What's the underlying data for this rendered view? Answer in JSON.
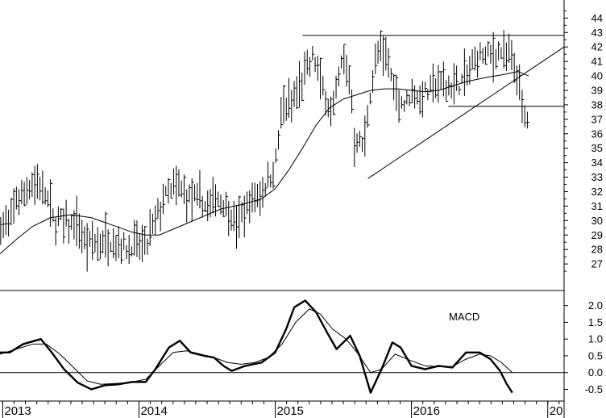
{
  "chart_data": [
    {
      "type": "ohlc",
      "title": "",
      "xlabel": "",
      "ylabel": "",
      "ylim": [
        25.5,
        44.8
      ],
      "yticks": [
        27,
        28,
        29,
        30,
        31,
        32,
        33,
        34,
        35,
        36,
        37,
        38,
        39,
        40,
        41,
        42,
        43,
        44
      ],
      "grid": false,
      "x_labels": [
        "2013",
        "2014",
        "2015",
        "2016",
        "20"
      ],
      "x_label_times": [
        2013.0,
        2014.0,
        2015.0,
        2016.0,
        2017.0
      ],
      "xlim": [
        2012.98,
        2017.12
      ],
      "price_knots": [
        [
          2012.98,
          29.7
        ],
        [
          2013.03,
          29.6
        ],
        [
          2013.1,
          31.5
        ],
        [
          2013.2,
          32.5
        ],
        [
          2013.3,
          32.4
        ],
        [
          2013.38,
          29.9
        ],
        [
          2013.45,
          30.0
        ],
        [
          2013.55,
          29.5
        ],
        [
          2013.62,
          28.1
        ],
        [
          2013.7,
          28.6
        ],
        [
          2013.8,
          28.6
        ],
        [
          2013.9,
          28.2
        ],
        [
          2014.0,
          28.3
        ],
        [
          2014.06,
          28.4
        ],
        [
          2014.12,
          30.0
        ],
        [
          2014.2,
          31.8
        ],
        [
          2014.28,
          32.3
        ],
        [
          2014.36,
          31.5
        ],
        [
          2014.45,
          31.4
        ],
        [
          2014.5,
          30.8
        ],
        [
          2014.56,
          31.7
        ],
        [
          2014.65,
          31.0
        ],
        [
          2014.72,
          29.6
        ],
        [
          2014.8,
          31.2
        ],
        [
          2014.9,
          32.0
        ],
        [
          2015.0,
          33.8
        ],
        [
          2015.05,
          37.7
        ],
        [
          2015.12,
          38.2
        ],
        [
          2015.2,
          39.5
        ],
        [
          2015.28,
          41.5
        ],
        [
          2015.35,
          39.0
        ],
        [
          2015.42,
          37.6
        ],
        [
          2015.5,
          41.5
        ],
        [
          2015.55,
          39.6
        ],
        [
          2015.58,
          35.7
        ],
        [
          2015.65,
          35.0
        ],
        [
          2015.7,
          39.0
        ],
        [
          2015.76,
          41.8
        ],
        [
          2015.82,
          41.4
        ],
        [
          2015.88,
          38.8
        ],
        [
          2015.95,
          38.0
        ],
        [
          2016.0,
          38.8
        ],
        [
          2016.05,
          38.6
        ],
        [
          2016.12,
          38.9
        ],
        [
          2016.2,
          39.6
        ],
        [
          2016.28,
          39.2
        ],
        [
          2016.35,
          39.4
        ],
        [
          2016.42,
          40.3
        ],
        [
          2016.5,
          41.4
        ],
        [
          2016.58,
          41.3
        ],
        [
          2016.65,
          41.8
        ],
        [
          2016.72,
          41.2
        ],
        [
          2016.78,
          39.8
        ],
        [
          2016.82,
          37.2
        ],
        [
          2016.86,
          36.8
        ]
      ],
      "moving_average": [
        [
          2012.98,
          27.7
        ],
        [
          2013.1,
          28.7
        ],
        [
          2013.22,
          29.6
        ],
        [
          2013.35,
          30.2
        ],
        [
          2013.5,
          30.4
        ],
        [
          2013.65,
          30.2
        ],
        [
          2013.8,
          29.7
        ],
        [
          2013.95,
          29.2
        ],
        [
          2014.05,
          29.0
        ],
        [
          2014.15,
          29.0
        ],
        [
          2014.3,
          29.6
        ],
        [
          2014.45,
          30.2
        ],
        [
          2014.6,
          30.8
        ],
        [
          2014.75,
          31.1
        ],
        [
          2014.9,
          31.5
        ],
        [
          2015.0,
          32.2
        ],
        [
          2015.1,
          33.5
        ],
        [
          2015.2,
          35.0
        ],
        [
          2015.3,
          36.6
        ],
        [
          2015.4,
          37.8
        ],
        [
          2015.5,
          38.4
        ],
        [
          2015.6,
          38.7
        ],
        [
          2015.7,
          39.0
        ],
        [
          2015.8,
          39.1
        ],
        [
          2015.9,
          39.1
        ],
        [
          2016.0,
          39.0
        ],
        [
          2016.1,
          38.9
        ],
        [
          2016.2,
          39.0
        ],
        [
          2016.3,
          39.3
        ],
        [
          2016.4,
          39.6
        ],
        [
          2016.55,
          39.9
        ],
        [
          2016.68,
          40.1
        ],
        [
          2016.78,
          40.3
        ],
        [
          2016.86,
          40.0
        ]
      ],
      "trend_lines": [
        [
          [
            2015.2,
            42.8
          ],
          [
            2017.12,
            42.8
          ]
        ],
        [
          [
            2016.27,
            37.9
          ],
          [
            2017.12,
            37.9
          ]
        ],
        [
          [
            2015.68,
            32.9
          ],
          [
            2017.12,
            42.0
          ]
        ]
      ]
    },
    {
      "type": "line",
      "title": "MACD",
      "ylim": [
        -0.85,
        2.45
      ],
      "yticks": [
        -0.5,
        0.0,
        0.5,
        1.0,
        1.5,
        2.0
      ],
      "ytick_labels": [
        "-0.5",
        "0.0",
        "0.5",
        "1.0",
        "1.5",
        "2.0"
      ],
      "zero_line": 0.0,
      "series": [
        {
          "style": "thick",
          "points": [
            [
              2012.98,
              0.6
            ],
            [
              2013.05,
              0.6
            ],
            [
              2013.15,
              0.85
            ],
            [
              2013.28,
              1.0
            ],
            [
              2013.36,
              0.6
            ],
            [
              2013.45,
              0.1
            ],
            [
              2013.55,
              -0.3
            ],
            [
              2013.65,
              -0.5
            ],
            [
              2013.75,
              -0.38
            ],
            [
              2013.85,
              -0.35
            ],
            [
              2013.95,
              -0.28
            ],
            [
              2014.05,
              -0.28
            ],
            [
              2014.12,
              0.1
            ],
            [
              2014.22,
              0.75
            ],
            [
              2014.3,
              0.95
            ],
            [
              2014.38,
              0.6
            ],
            [
              2014.48,
              0.5
            ],
            [
              2014.55,
              0.45
            ],
            [
              2014.62,
              0.2
            ],
            [
              2014.68,
              0.05
            ],
            [
              2014.78,
              0.2
            ],
            [
              2014.9,
              0.3
            ],
            [
              2015.0,
              0.6
            ],
            [
              2015.08,
              1.3
            ],
            [
              2015.14,
              1.95
            ],
            [
              2015.22,
              2.15
            ],
            [
              2015.3,
              1.8
            ],
            [
              2015.38,
              1.2
            ],
            [
              2015.45,
              0.7
            ],
            [
              2015.55,
              1.1
            ],
            [
              2015.62,
              0.5
            ],
            [
              2015.7,
              -0.6
            ],
            [
              2015.78,
              0.1
            ],
            [
              2015.86,
              0.9
            ],
            [
              2015.92,
              0.75
            ],
            [
              2016.0,
              0.2
            ],
            [
              2016.1,
              0.1
            ],
            [
              2016.2,
              0.2
            ],
            [
              2016.3,
              0.15
            ],
            [
              2016.4,
              0.6
            ],
            [
              2016.5,
              0.6
            ],
            [
              2016.58,
              0.4
            ],
            [
              2016.65,
              0.05
            ],
            [
              2016.7,
              -0.35
            ],
            [
              2016.74,
              -0.6
            ]
          ]
        },
        {
          "style": "thin",
          "points": [
            [
              2012.98,
              0.55
            ],
            [
              2013.1,
              0.7
            ],
            [
              2013.22,
              0.85
            ],
            [
              2013.32,
              0.85
            ],
            [
              2013.42,
              0.55
            ],
            [
              2013.52,
              0.15
            ],
            [
              2013.62,
              -0.25
            ],
            [
              2013.72,
              -0.35
            ],
            [
              2013.85,
              -0.32
            ],
            [
              2013.95,
              -0.28
            ],
            [
              2014.05,
              -0.2
            ],
            [
              2014.15,
              0.2
            ],
            [
              2014.25,
              0.6
            ],
            [
              2014.35,
              0.65
            ],
            [
              2014.45,
              0.55
            ],
            [
              2014.55,
              0.45
            ],
            [
              2014.65,
              0.3
            ],
            [
              2014.75,
              0.25
            ],
            [
              2014.85,
              0.3
            ],
            [
              2014.95,
              0.45
            ],
            [
              2015.05,
              0.85
            ],
            [
              2015.15,
              1.5
            ],
            [
              2015.25,
              1.9
            ],
            [
              2015.33,
              1.75
            ],
            [
              2015.42,
              1.3
            ],
            [
              2015.52,
              1.0
            ],
            [
              2015.6,
              0.6
            ],
            [
              2015.7,
              0.0
            ],
            [
              2015.78,
              0.1
            ],
            [
              2015.88,
              0.55
            ],
            [
              2016.0,
              0.35
            ],
            [
              2016.1,
              0.2
            ],
            [
              2016.2,
              0.18
            ],
            [
              2016.3,
              0.18
            ],
            [
              2016.4,
              0.4
            ],
            [
              2016.5,
              0.55
            ],
            [
              2016.58,
              0.5
            ],
            [
              2016.66,
              0.3
            ],
            [
              2016.74,
              0.0
            ]
          ]
        }
      ]
    }
  ]
}
